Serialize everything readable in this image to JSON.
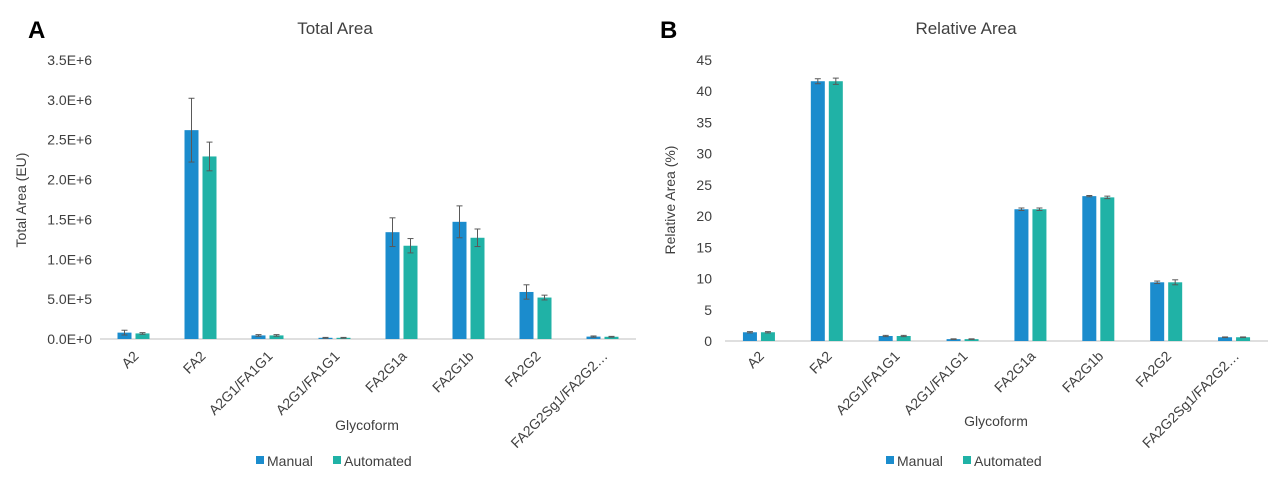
{
  "chart_data": [
    {
      "panel": "A",
      "type": "bar",
      "title": "Total Area",
      "xlabel": "Glycoform",
      "ylabel": "Total Area (EU)",
      "ylim": [
        0,
        3500000
      ],
      "yticks": [
        "0.0E+0",
        "5.0E+5",
        "1.0E+6",
        "1.5E+6",
        "2.0E+6",
        "2.5E+6",
        "3.0E+6",
        "3.5E+6"
      ],
      "categories": [
        "A2",
        "FA2",
        "A2G1/FA1G1",
        "A2G1/FA1G1",
        "FA2G1a",
        "FA2G1b",
        "FA2G2",
        "FA2G2Sg1/FA2G2…"
      ],
      "series": [
        {
          "name": "Manual",
          "color": "#1b8ccd",
          "values": [
            80000,
            2620000,
            45000,
            15000,
            1340000,
            1470000,
            590000,
            30000
          ],
          "errors": [
            30000,
            400000,
            10000,
            5000,
            180000,
            200000,
            90000,
            8000
          ]
        },
        {
          "name": "Automated",
          "color": "#20b2a6",
          "values": [
            70000,
            2290000,
            45000,
            15000,
            1170000,
            1270000,
            520000,
            28000
          ],
          "errors": [
            10000,
            180000,
            10000,
            5000,
            90000,
            110000,
            30000,
            5000
          ]
        }
      ],
      "legend": "bottom",
      "grid": false
    },
    {
      "panel": "B",
      "type": "bar",
      "title": "Relative Area",
      "xlabel": "Glycoform",
      "ylabel": "Relative Area (%)",
      "ylim": [
        0,
        45
      ],
      "yticks": [
        "0",
        "5",
        "10",
        "15",
        "20",
        "25",
        "30",
        "35",
        "40",
        "45"
      ],
      "categories": [
        "A2",
        "FA2",
        "A2G1/FA1G1",
        "A2G1/FA1G1",
        "FA2G1a",
        "FA2G1b",
        "FA2G2",
        "FA2G2Sg1/FA2G2…"
      ],
      "series": [
        {
          "name": "Manual",
          "color": "#1b8ccd",
          "values": [
            1.4,
            41.6,
            0.8,
            0.3,
            21.1,
            23.2,
            9.4,
            0.6
          ],
          "errors": [
            0.1,
            0.4,
            0.1,
            0.05,
            0.2,
            0.1,
            0.2,
            0.05
          ]
        },
        {
          "name": "Automated",
          "color": "#20b2a6",
          "values": [
            1.4,
            41.6,
            0.8,
            0.3,
            21.1,
            23.0,
            9.4,
            0.6
          ],
          "errors": [
            0.1,
            0.5,
            0.1,
            0.05,
            0.2,
            0.2,
            0.4,
            0.05
          ]
        }
      ],
      "legend": "bottom",
      "grid": false
    }
  ]
}
